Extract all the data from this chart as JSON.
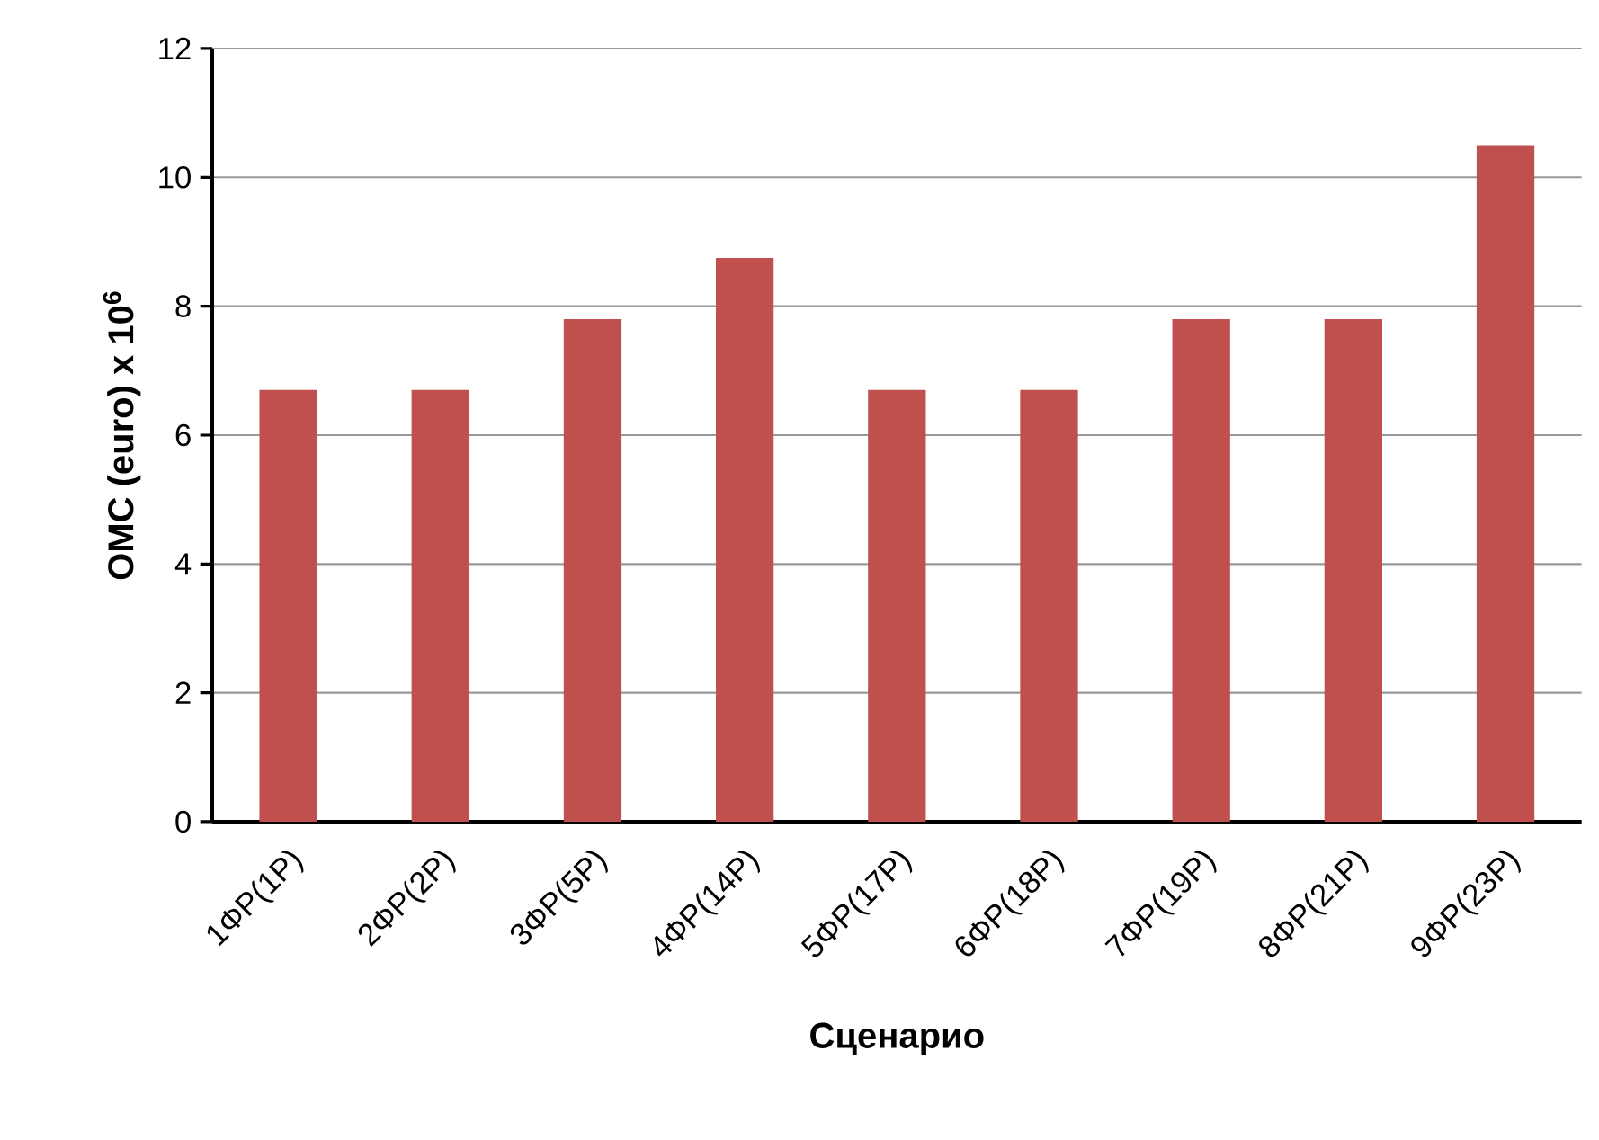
{
  "chart_data": {
    "type": "bar",
    "xlabel": "Сценарио",
    "ylabel": "OMC (euro) x 10$^{6}$",
    "categories": [
      "1ΦP(1P)",
      "2ΦP(2P)",
      "3ΦP(5P)",
      "4ΦP(14P)",
      "5ΦP(17P)",
      "6ΦP(18P)",
      "7ΦP(19P)",
      "8ΦP(21P)",
      "9ΦP(23P)"
    ],
    "values": [
      6.7,
      6.7,
      7.8,
      8.75,
      6.7,
      6.7,
      7.8,
      7.8,
      10.5
    ],
    "color": "#c0504d",
    "ylim": [
      0,
      12
    ],
    "yticks": [
      0,
      2,
      4,
      6,
      8,
      10,
      12
    ],
    "grid": "y"
  }
}
